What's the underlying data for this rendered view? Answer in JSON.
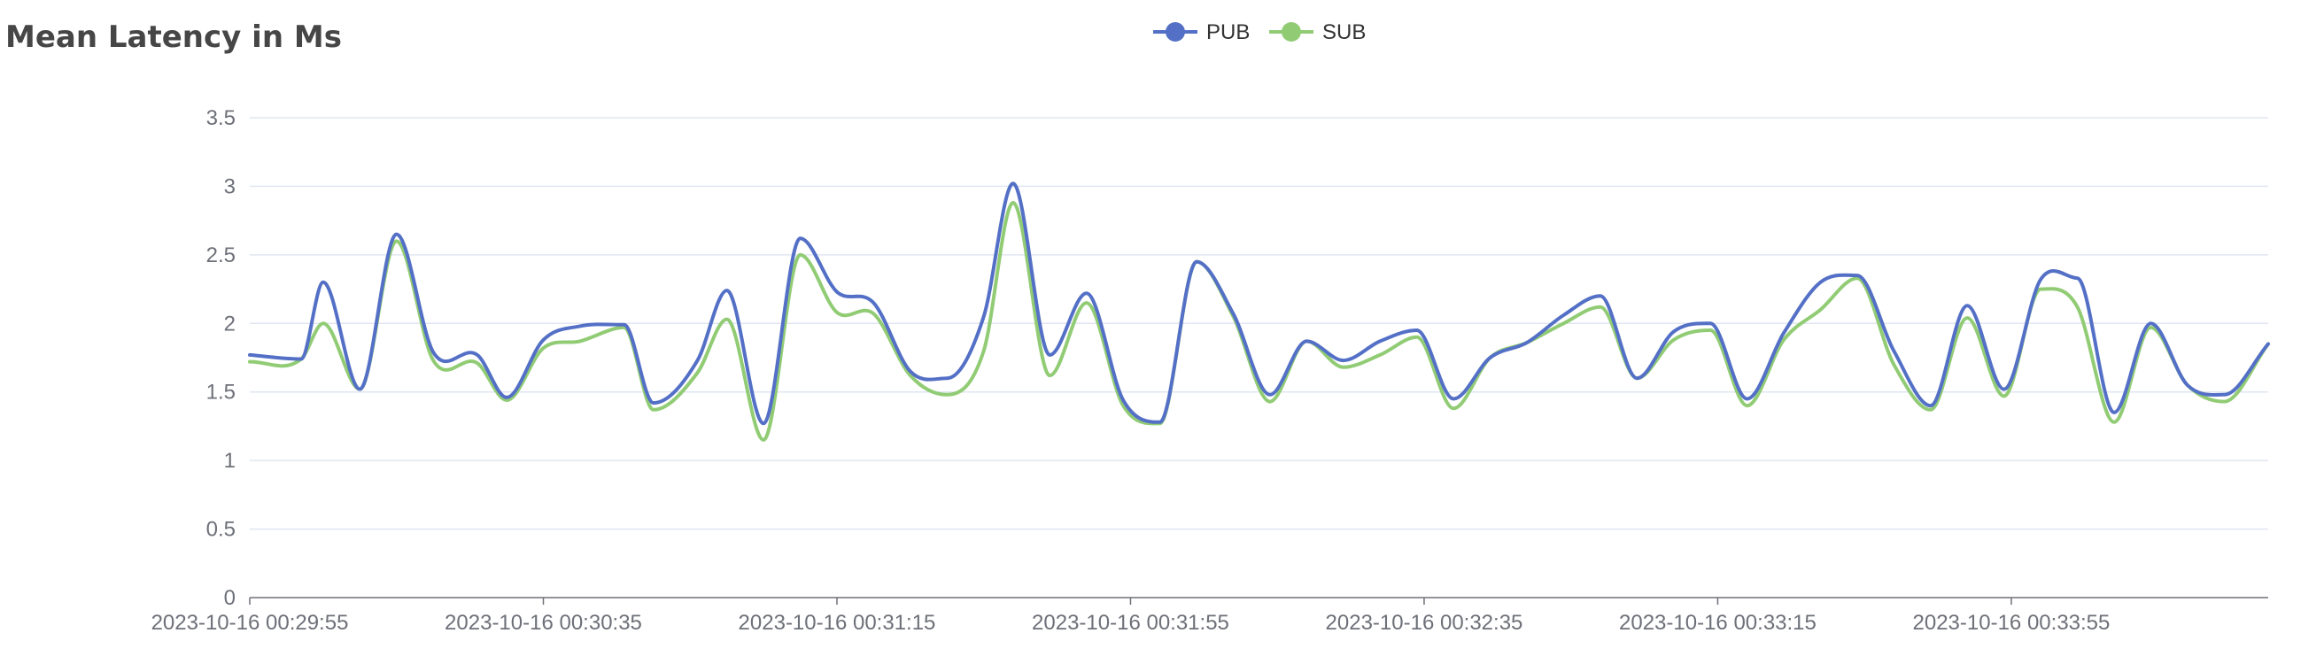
{
  "title": "Mean Latency in Ms",
  "legend": [
    {
      "name": "PUB",
      "color": "#5470c6",
      "icon": "circle-line-icon"
    },
    {
      "name": "SUB",
      "color": "#91cc75",
      "icon": "circle-line-icon"
    }
  ],
  "chart_data": {
    "type": "line",
    "title": "Mean Latency in Ms",
    "xlabel": "",
    "ylabel": "",
    "ylim": [
      0,
      3.5
    ],
    "yticks": [
      "0",
      "0.5",
      "1",
      "1.5",
      "2",
      "2.5",
      "3",
      "3.5"
    ],
    "x_tick_labels": [
      "2023-10-16 00:29:55",
      "2023-10-16 00:30:35",
      "2023-10-16 00:31:15",
      "2023-10-16 00:31:55",
      "2023-10-16 00:32:35",
      "2023-10-16 00:33:15",
      "2023-10-16 00:33:55"
    ],
    "x_start": "2023-10-16 00:29:55",
    "x_end": "2023-10-16 00:34:30",
    "grid": "horizontal",
    "legend_position": "top-center",
    "smooth": true,
    "series": [
      {
        "name": "PUB",
        "color": "#5470c6",
        "points": [
          [
            "2023-10-16 00:29:55",
            1.77
          ],
          [
            "2023-10-16 00:30:02",
            1.74
          ],
          [
            "2023-10-16 00:30:05",
            2.3
          ],
          [
            "2023-10-16 00:30:10",
            1.52
          ],
          [
            "2023-10-16 00:30:15",
            2.65
          ],
          [
            "2023-10-16 00:30:20",
            1.79
          ],
          [
            "2023-10-16 00:30:26",
            1.77
          ],
          [
            "2023-10-16 00:30:30",
            1.46
          ],
          [
            "2023-10-16 00:30:35",
            1.88
          ],
          [
            "2023-10-16 00:30:40",
            1.98
          ],
          [
            "2023-10-16 00:30:46",
            1.99
          ],
          [
            "2023-10-16 00:30:50",
            1.42
          ],
          [
            "2023-10-16 00:30:56",
            1.73
          ],
          [
            "2023-10-16 00:31:00",
            2.24
          ],
          [
            "2023-10-16 00:31:05",
            1.27
          ],
          [
            "2023-10-16 00:31:10",
            2.62
          ],
          [
            "2023-10-16 00:31:15",
            2.23
          ],
          [
            "2023-10-16 00:31:20",
            2.15
          ],
          [
            "2023-10-16 00:31:25",
            1.65
          ],
          [
            "2023-10-16 00:31:30",
            1.6
          ],
          [
            "2023-10-16 00:31:35",
            2.05
          ],
          [
            "2023-10-16 00:31:39",
            3.02
          ],
          [
            "2023-10-16 00:31:44",
            1.77
          ],
          [
            "2023-10-16 00:31:49",
            2.22
          ],
          [
            "2023-10-16 00:31:54",
            1.44
          ],
          [
            "2023-10-16 00:31:59",
            1.28
          ],
          [
            "2023-10-16 00:32:04",
            2.45
          ],
          [
            "2023-10-16 00:32:09",
            2.07
          ],
          [
            "2023-10-16 00:32:14",
            1.48
          ],
          [
            "2023-10-16 00:32:19",
            1.87
          ],
          [
            "2023-10-16 00:32:24",
            1.73
          ],
          [
            "2023-10-16 00:32:29",
            1.87
          ],
          [
            "2023-10-16 00:32:34",
            1.95
          ],
          [
            "2023-10-16 00:32:39",
            1.45
          ],
          [
            "2023-10-16 00:32:44",
            1.75
          ],
          [
            "2023-10-16 00:32:49",
            1.86
          ],
          [
            "2023-10-16 00:32:54",
            2.06
          ],
          [
            "2023-10-16 00:32:59",
            2.2
          ],
          [
            "2023-10-16 00:33:04",
            1.6
          ],
          [
            "2023-10-16 00:33:09",
            1.94
          ],
          [
            "2023-10-16 00:33:14",
            2.0
          ],
          [
            "2023-10-16 00:33:19",
            1.45
          ],
          [
            "2023-10-16 00:33:24",
            1.93
          ],
          [
            "2023-10-16 00:33:29",
            2.3
          ],
          [
            "2023-10-16 00:33:34",
            2.35
          ],
          [
            "2023-10-16 00:33:39",
            1.8
          ],
          [
            "2023-10-16 00:33:44",
            1.4
          ],
          [
            "2023-10-16 00:33:49",
            2.13
          ],
          [
            "2023-10-16 00:33:54",
            1.52
          ],
          [
            "2023-10-16 00:33:59",
            2.32
          ],
          [
            "2023-10-16 00:34:04",
            2.33
          ],
          [
            "2023-10-16 00:34:09",
            1.35
          ],
          [
            "2023-10-16 00:34:14",
            2.0
          ],
          [
            "2023-10-16 00:34:19",
            1.55
          ],
          [
            "2023-10-16 00:34:24",
            1.48
          ],
          [
            "2023-10-16 00:34:30",
            1.85
          ]
        ]
      },
      {
        "name": "SUB",
        "color": "#91cc75",
        "points": [
          [
            "2023-10-16 00:29:55",
            1.72
          ],
          [
            "2023-10-16 00:30:02",
            1.74
          ],
          [
            "2023-10-16 00:30:05",
            2.0
          ],
          [
            "2023-10-16 00:30:10",
            1.52
          ],
          [
            "2023-10-16 00:30:15",
            2.6
          ],
          [
            "2023-10-16 00:30:20",
            1.73
          ],
          [
            "2023-10-16 00:30:26",
            1.71
          ],
          [
            "2023-10-16 00:30:30",
            1.44
          ],
          [
            "2023-10-16 00:30:35",
            1.82
          ],
          [
            "2023-10-16 00:30:40",
            1.87
          ],
          [
            "2023-10-16 00:30:46",
            1.97
          ],
          [
            "2023-10-16 00:30:50",
            1.37
          ],
          [
            "2023-10-16 00:30:56",
            1.64
          ],
          [
            "2023-10-16 00:31:00",
            2.03
          ],
          [
            "2023-10-16 00:31:05",
            1.15
          ],
          [
            "2023-10-16 00:31:10",
            2.5
          ],
          [
            "2023-10-16 00:31:15",
            2.08
          ],
          [
            "2023-10-16 00:31:20",
            2.07
          ],
          [
            "2023-10-16 00:31:25",
            1.62
          ],
          [
            "2023-10-16 00:31:30",
            1.48
          ],
          [
            "2023-10-16 00:31:35",
            1.8
          ],
          [
            "2023-10-16 00:31:39",
            2.88
          ],
          [
            "2023-10-16 00:31:44",
            1.62
          ],
          [
            "2023-10-16 00:31:49",
            2.15
          ],
          [
            "2023-10-16 00:31:54",
            1.4
          ],
          [
            "2023-10-16 00:31:59",
            1.27
          ],
          [
            "2023-10-16 00:32:04",
            2.45
          ],
          [
            "2023-10-16 00:32:09",
            2.05
          ],
          [
            "2023-10-16 00:32:14",
            1.43
          ],
          [
            "2023-10-16 00:32:19",
            1.87
          ],
          [
            "2023-10-16 00:32:24",
            1.68
          ],
          [
            "2023-10-16 00:32:29",
            1.77
          ],
          [
            "2023-10-16 00:32:34",
            1.9
          ],
          [
            "2023-10-16 00:32:39",
            1.38
          ],
          [
            "2023-10-16 00:32:44",
            1.75
          ],
          [
            "2023-10-16 00:32:49",
            1.86
          ],
          [
            "2023-10-16 00:32:54",
            2.0
          ],
          [
            "2023-10-16 00:32:59",
            2.12
          ],
          [
            "2023-10-16 00:33:04",
            1.6
          ],
          [
            "2023-10-16 00:33:09",
            1.88
          ],
          [
            "2023-10-16 00:33:14",
            1.95
          ],
          [
            "2023-10-16 00:33:19",
            1.4
          ],
          [
            "2023-10-16 00:33:24",
            1.88
          ],
          [
            "2023-10-16 00:33:29",
            2.1
          ],
          [
            "2023-10-16 00:33:34",
            2.33
          ],
          [
            "2023-10-16 00:33:39",
            1.7
          ],
          [
            "2023-10-16 00:33:44",
            1.37
          ],
          [
            "2023-10-16 00:33:49",
            2.04
          ],
          [
            "2023-10-16 00:33:54",
            1.47
          ],
          [
            "2023-10-16 00:33:59",
            2.25
          ],
          [
            "2023-10-16 00:34:04",
            2.12
          ],
          [
            "2023-10-16 00:34:09",
            1.28
          ],
          [
            "2023-10-16 00:34:14",
            1.97
          ],
          [
            "2023-10-16 00:34:19",
            1.55
          ],
          [
            "2023-10-16 00:34:24",
            1.43
          ],
          [
            "2023-10-16 00:34:30",
            1.85
          ]
        ]
      }
    ]
  }
}
